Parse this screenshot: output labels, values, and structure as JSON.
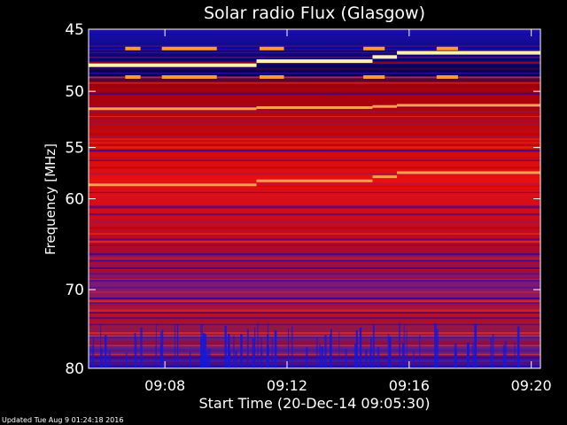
{
  "chart_data": {
    "type": "heatmap",
    "title": "Solar radio Flux (Glasgow)",
    "ylabel": "Frequency [MHz]",
    "xlabel": "Start Time (20-Dec-14 09:05:30)",
    "footer": "Updated Tue Aug  9 01:24:18 2016",
    "y_ticks": [
      45,
      50,
      55,
      60,
      70,
      80
    ],
    "ylim": [
      45,
      80
    ],
    "y_scale": "log",
    "y_inverted": true,
    "x_ticks": [
      "09:08",
      "09:12",
      "09:16",
      "09:20"
    ],
    "x_tick_minutes": [
      8,
      12,
      16,
      20
    ],
    "xlim_minutes": [
      5.5,
      20.3
    ],
    "color_scale": [
      "#0000c8",
      "#7a1a7a",
      "#c00000",
      "#ff3b1a",
      "#ffa050",
      "#fff0b0"
    ],
    "bright_lines_mhz": [
      {
        "start": 47.8,
        "end": 46.8,
        "color": "#fff0b0"
      },
      {
        "start": 51.5,
        "end": 51.2,
        "color": "#ffa050"
      },
      {
        "start": 58.6,
        "end": 57.4,
        "color": "#ffa050"
      }
    ],
    "shift_times_minutes": [
      11.0,
      14.8,
      15.6
    ],
    "intermittent_bands_mhz": [
      46.5,
      48.8
    ],
    "intermittent_on_ranges_minutes": [
      [
        6.7,
        7.2
      ],
      [
        7.9,
        9.7
      ],
      [
        11.1,
        11.9
      ],
      [
        14.5,
        15.2
      ],
      [
        16.9,
        17.6
      ]
    ]
  }
}
